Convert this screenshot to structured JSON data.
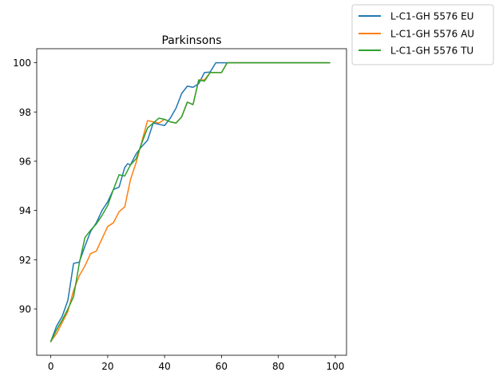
{
  "chart_data": {
    "type": "line",
    "title": "Parkinsons",
    "xlabel": "",
    "ylabel": "",
    "xlim": [
      -4.95,
      103.95
    ],
    "ylim": [
      88.12,
      100.57
    ],
    "xticks": [
      0,
      20,
      40,
      60,
      80,
      100
    ],
    "yticks": [
      90,
      92,
      94,
      96,
      98,
      100
    ],
    "legend_position": "outside-top-right",
    "grid": false,
    "series": [
      {
        "name": "L-C1-GH 5576 EU",
        "color": "#1f77b4",
        "x": [
          0,
          2,
          4,
          6,
          8,
          10,
          12,
          14,
          16,
          18,
          20,
          22,
          24,
          26,
          27,
          28,
          30,
          32,
          34,
          36,
          38,
          40,
          42,
          44,
          46,
          48,
          50,
          52,
          54,
          56,
          58,
          60,
          62,
          64,
          66,
          68,
          70,
          72,
          74,
          76,
          78,
          80,
          82,
          84,
          86,
          88,
          90,
          92,
          94,
          96,
          98
        ],
        "y": [
          88.68,
          89.3,
          89.7,
          90.35,
          91.85,
          91.9,
          92.55,
          93.15,
          93.5,
          94.0,
          94.35,
          94.85,
          94.95,
          95.75,
          95.9,
          95.85,
          96.3,
          96.6,
          96.85,
          97.55,
          97.5,
          97.45,
          97.75,
          98.15,
          98.75,
          99.05,
          99.0,
          99.15,
          99.6,
          99.62,
          100.0,
          100.0,
          100.0,
          100.0,
          100.0,
          100.0,
          100.0,
          100.0,
          100.0,
          100.0,
          100.0,
          100.0,
          100.0,
          100.0,
          100.0,
          100.0,
          100.0,
          100.0,
          100.0,
          100.0,
          100.0
        ]
      },
      {
        "name": "L-C1-GH 5576 AU",
        "color": "#ff7f0e",
        "x": [
          0,
          2,
          4,
          6,
          8,
          10,
          12,
          14,
          16,
          18,
          20,
          22,
          24,
          26,
          28,
          30,
          32,
          34,
          36,
          38,
          40,
          42,
          44,
          46,
          48,
          50,
          52,
          54,
          56,
          58,
          60,
          62,
          64,
          66,
          68,
          70,
          72,
          74,
          76,
          78,
          80,
          82,
          84,
          86,
          88,
          90,
          92,
          94,
          96,
          98
        ],
        "y": [
          88.68,
          89.0,
          89.45,
          89.9,
          90.75,
          91.35,
          91.75,
          92.25,
          92.35,
          92.85,
          93.35,
          93.5,
          93.95,
          94.15,
          95.25,
          95.95,
          96.8,
          97.65,
          97.6,
          97.55,
          97.7,
          97.6,
          97.55,
          97.8,
          98.4,
          98.3,
          99.3,
          99.3,
          99.6,
          99.6,
          99.6,
          100.0,
          100.0,
          100.0,
          100.0,
          100.0,
          100.0,
          100.0,
          100.0,
          100.0,
          100.0,
          100.0,
          100.0,
          100.0,
          100.0,
          100.0,
          100.0,
          100.0,
          100.0,
          100.0
        ]
      },
      {
        "name": "L-C1-GH 5576 TU",
        "color": "#2ca02c",
        "x": [
          0,
          2,
          4,
          6,
          8,
          10,
          12,
          14,
          16,
          18,
          20,
          22,
          24,
          26,
          28,
          30,
          32,
          34,
          36,
          38,
          40,
          42,
          44,
          46,
          48,
          50,
          52,
          54,
          56,
          58,
          60,
          62,
          64,
          66,
          68,
          70,
          72,
          74,
          76,
          78,
          80,
          82,
          84,
          86,
          88,
          90,
          92,
          94,
          96,
          98
        ],
        "y": [
          88.68,
          89.15,
          89.55,
          90.0,
          90.5,
          91.85,
          92.9,
          93.2,
          93.45,
          93.8,
          94.2,
          94.85,
          95.45,
          95.4,
          95.85,
          96.1,
          96.75,
          97.35,
          97.55,
          97.75,
          97.7,
          97.6,
          97.55,
          97.8,
          98.4,
          98.3,
          99.3,
          99.25,
          99.6,
          99.6,
          99.6,
          100.0,
          100.0,
          100.0,
          100.0,
          100.0,
          100.0,
          100.0,
          100.0,
          100.0,
          100.0,
          100.0,
          100.0,
          100.0,
          100.0,
          100.0,
          100.0,
          100.0,
          100.0,
          100.0
        ]
      }
    ]
  }
}
